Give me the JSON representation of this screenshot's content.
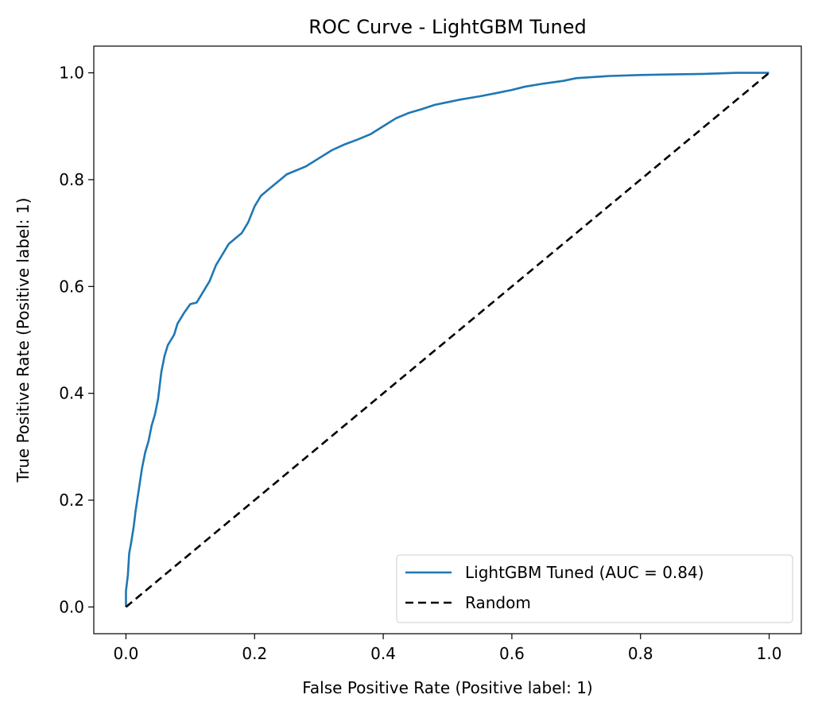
{
  "chart_data": {
    "type": "line",
    "title": "ROC Curve - LightGBM Tuned",
    "xlabel": "False Positive Rate (Positive label: 1)",
    "ylabel": "True Positive Rate (Positive label: 1)",
    "xlim": [
      -0.05,
      1.05
    ],
    "ylim": [
      -0.05,
      1.05
    ],
    "xticks": [
      0.0,
      0.2,
      0.4,
      0.6,
      0.8,
      1.0
    ],
    "xtick_labels": [
      "0.0",
      "0.2",
      "0.4",
      "0.6",
      "0.8",
      "1.0"
    ],
    "yticks": [
      0.0,
      0.2,
      0.4,
      0.6,
      0.8,
      1.0
    ],
    "ytick_labels": [
      "0.0",
      "0.2",
      "0.4",
      "0.6",
      "0.8",
      "1.0"
    ],
    "grid": false,
    "legend_position": "lower-right",
    "series": [
      {
        "name": "LightGBM Tuned (AUC = 0.84)",
        "color": "#1f77b4",
        "style": "solid",
        "x": [
          0.0,
          0.0,
          0.003,
          0.005,
          0.008,
          0.012,
          0.015,
          0.02,
          0.025,
          0.03,
          0.035,
          0.04,
          0.045,
          0.05,
          0.055,
          0.06,
          0.065,
          0.07,
          0.075,
          0.08,
          0.09,
          0.1,
          0.11,
          0.12,
          0.13,
          0.14,
          0.15,
          0.16,
          0.17,
          0.18,
          0.19,
          0.2,
          0.21,
          0.22,
          0.23,
          0.24,
          0.25,
          0.26,
          0.27,
          0.28,
          0.3,
          0.32,
          0.34,
          0.36,
          0.38,
          0.4,
          0.42,
          0.44,
          0.46,
          0.48,
          0.5,
          0.52,
          0.55,
          0.58,
          0.6,
          0.62,
          0.65,
          0.68,
          0.7,
          0.75,
          0.8,
          0.85,
          0.9,
          0.95,
          0.97,
          1.0
        ],
        "y": [
          0.0,
          0.03,
          0.06,
          0.1,
          0.12,
          0.15,
          0.18,
          0.22,
          0.26,
          0.29,
          0.31,
          0.34,
          0.36,
          0.39,
          0.44,
          0.47,
          0.49,
          0.5,
          0.51,
          0.53,
          0.55,
          0.567,
          0.57,
          0.59,
          0.61,
          0.64,
          0.66,
          0.68,
          0.69,
          0.7,
          0.72,
          0.75,
          0.77,
          0.78,
          0.79,
          0.8,
          0.81,
          0.815,
          0.82,
          0.825,
          0.84,
          0.855,
          0.866,
          0.875,
          0.885,
          0.9,
          0.915,
          0.925,
          0.932,
          0.94,
          0.945,
          0.95,
          0.956,
          0.963,
          0.968,
          0.974,
          0.98,
          0.985,
          0.99,
          0.994,
          0.996,
          0.997,
          0.998,
          1.0,
          1.0,
          1.0
        ]
      },
      {
        "name": "Random",
        "color": "#000000",
        "style": "dashed",
        "x": [
          0.0,
          1.0
        ],
        "y": [
          0.0,
          1.0
        ]
      }
    ]
  }
}
